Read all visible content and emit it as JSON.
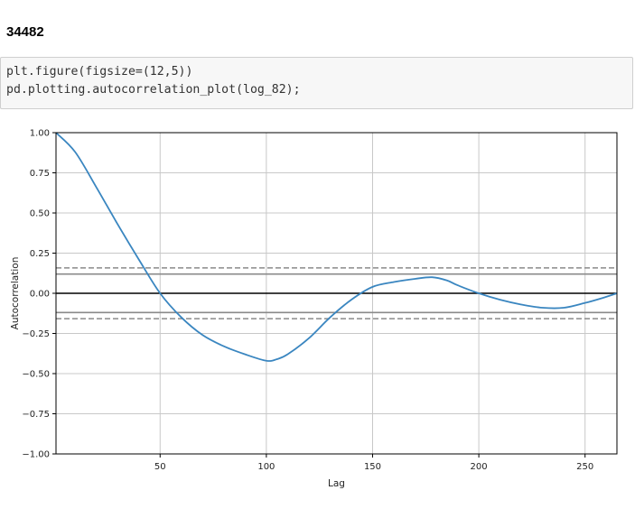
{
  "heading": "34482",
  "code": {
    "line1": "plt.figure(figsize=(12,5))",
    "line2": "pd.plotting.autocorrelation_plot(log_82);"
  },
  "colors": {
    "series": "#3a86c0",
    "grid": "#c8c8c8",
    "zero_line": "#000000",
    "confidence": "#8a8a8a"
  },
  "chart_data": {
    "type": "line",
    "xlabel": "Lag",
    "ylabel": "Autocorrelation",
    "xlim": [
      1,
      265
    ],
    "ylim": [
      -1.0,
      1.0
    ],
    "xticks": [
      50,
      100,
      150,
      200,
      250
    ],
    "yticks": [
      1.0,
      0.75,
      0.5,
      0.25,
      0.0,
      -0.25,
      -0.5,
      -0.75,
      -1.0
    ],
    "ytick_labels": [
      "1.00",
      "0.75",
      "0.50",
      "0.25",
      "0.00",
      "−0.25",
      "−0.50",
      "−0.75",
      "−1.00"
    ],
    "grid": true,
    "reference_lines": {
      "zero": 0.0,
      "solid_95": [
        0.12,
        -0.12
      ],
      "dashed_99": [
        0.158,
        -0.158
      ]
    },
    "series": [
      {
        "x": [
          1,
          10,
          20,
          30,
          40,
          50,
          60,
          70,
          80,
          90,
          100,
          105,
          110,
          120,
          130,
          140,
          150,
          160,
          170,
          178,
          185,
          190,
          200,
          210,
          220,
          230,
          240,
          250,
          258,
          265
        ],
        "values": [
          1.0,
          0.88,
          0.66,
          0.43,
          0.21,
          0.0,
          -0.15,
          -0.26,
          -0.33,
          -0.38,
          -0.42,
          -0.41,
          -0.38,
          -0.28,
          -0.15,
          -0.04,
          0.04,
          0.07,
          0.09,
          0.1,
          0.08,
          0.05,
          0.0,
          -0.04,
          -0.07,
          -0.09,
          -0.09,
          -0.06,
          -0.03,
          0.0
        ]
      }
    ]
  }
}
